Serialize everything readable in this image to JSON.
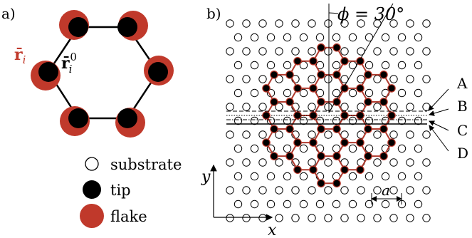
{
  "panel_a": {
    "label": "a)",
    "symbol_flake_pos": "r̄",
    "symbol_flake_sub": "i",
    "symbol_tip_pos": "r̄",
    "symbol_tip_sub": "i",
    "symbol_tip_sup": "0"
  },
  "legend": {
    "items": [
      {
        "label": "substrate",
        "marker": "open-circle"
      },
      {
        "label": "tip",
        "marker": "black-dot"
      },
      {
        "label": "flake",
        "marker": "red-dot"
      }
    ]
  },
  "panel_b": {
    "label": "b)",
    "angle_label": "ϕ = 30°",
    "lines": [
      "A",
      "B",
      "C",
      "D"
    ],
    "axis_x": "x",
    "axis_y": "y",
    "spacing_label": "a"
  },
  "colors": {
    "flake": "#c0392b",
    "lattice_line": "#b03a2e",
    "tip": "#000000",
    "substrate_fill": "#ffffff"
  }
}
